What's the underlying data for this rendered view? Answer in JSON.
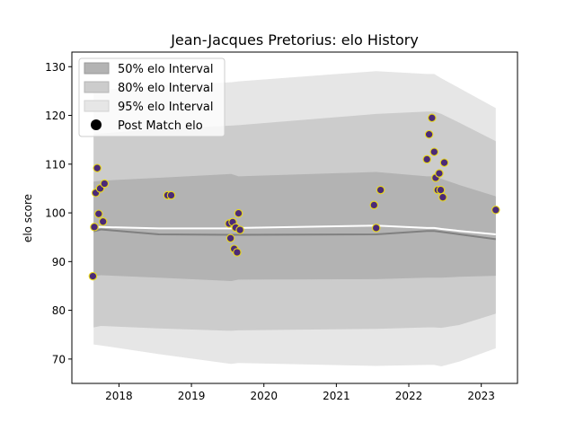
{
  "chart_data": {
    "type": "area",
    "title": "Jean-Jacques Pretorius: elo History",
    "xlabel": "",
    "ylabel": "elo score",
    "xlim": [
      2017.35,
      2023.5
    ],
    "ylim": [
      65,
      133
    ],
    "x_ticks": [
      2018,
      2019,
      2020,
      2021,
      2022,
      2023
    ],
    "y_ticks": [
      70,
      80,
      90,
      100,
      110,
      120,
      130
    ],
    "grid": false,
    "legend_position": "top-left",
    "legend": {
      "i50": "50% elo Interval",
      "i80": "80% elo Interval",
      "i95": "95% elo Interval",
      "post": "Post Match elo"
    },
    "colors": {
      "band50": "#b3b3b3",
      "band80": "#cccccc",
      "band95": "#e6e6e6",
      "mean_line": "#ffffff",
      "median_line": "#808080",
      "point_fill": "#4b2a77",
      "point_edge": "#e8d81c"
    },
    "bands": {
      "x": [
        2017.65,
        2017.75,
        2018.55,
        2019.55,
        2019.65,
        2021.55,
        2022.25,
        2022.35,
        2022.45,
        2022.7,
        2023.2
      ],
      "p95_low": [
        73.0,
        72.8,
        71.0,
        69.0,
        69.2,
        68.6,
        68.8,
        68.8,
        68.5,
        69.5,
        72.2
      ],
      "p80_low": [
        76.5,
        76.8,
        76.3,
        75.8,
        75.9,
        76.2,
        76.5,
        76.5,
        76.4,
        77.0,
        79.3
      ],
      "p50_low": [
        87.0,
        87.2,
        86.7,
        86.0,
        86.3,
        86.4,
        86.7,
        86.7,
        86.7,
        86.9,
        87.1
      ],
      "p50_high": [
        106.4,
        106.6,
        107.2,
        108.0,
        107.5,
        108.4,
        107.5,
        107.5,
        107.0,
        105.7,
        103.4
      ],
      "p80_high": [
        116.1,
        116.3,
        117.2,
        117.9,
        118.0,
        120.3,
        120.8,
        120.8,
        120.3,
        118.5,
        114.7
      ],
      "p95_high": [
        125.0,
        125.2,
        126.2,
        126.8,
        127.0,
        129.1,
        128.5,
        128.5,
        127.6,
        125.6,
        121.5
      ]
    },
    "mean_line": {
      "x": [
        2017.65,
        2017.75,
        2018.55,
        2019.55,
        2019.65,
        2021.55,
        2022.25,
        2022.35,
        2022.45,
        2022.7,
        2023.2
      ],
      "y": [
        97.1,
        97.1,
        96.8,
        96.8,
        96.9,
        97.4,
        96.9,
        96.9,
        96.7,
        96.3,
        95.6
      ]
    },
    "median_line": {
      "x": [
        2017.65,
        2017.75,
        2018.55,
        2019.55,
        2019.65,
        2021.55,
        2022.25,
        2022.35,
        2022.45,
        2022.7,
        2023.2
      ],
      "y": [
        96.2,
        96.6,
        95.6,
        95.5,
        95.5,
        95.6,
        96.3,
        96.3,
        96.1,
        95.6,
        94.6
      ]
    },
    "points": [
      {
        "x": 2017.64,
        "y": 87.0
      },
      {
        "x": 2017.66,
        "y": 97.1
      },
      {
        "x": 2017.68,
        "y": 104.1
      },
      {
        "x": 2017.7,
        "y": 109.2
      },
      {
        "x": 2017.72,
        "y": 99.8
      },
      {
        "x": 2017.74,
        "y": 105.0
      },
      {
        "x": 2017.78,
        "y": 98.2
      },
      {
        "x": 2017.8,
        "y": 106.0
      },
      {
        "x": 2018.67,
        "y": 103.6
      },
      {
        "x": 2018.72,
        "y": 103.6
      },
      {
        "x": 2019.52,
        "y": 97.8
      },
      {
        "x": 2019.54,
        "y": 94.8
      },
      {
        "x": 2019.57,
        "y": 98.1
      },
      {
        "x": 2019.59,
        "y": 92.6
      },
      {
        "x": 2019.61,
        "y": 97.0
      },
      {
        "x": 2019.63,
        "y": 91.9
      },
      {
        "x": 2019.65,
        "y": 99.9
      },
      {
        "x": 2019.67,
        "y": 96.5
      },
      {
        "x": 2021.52,
        "y": 101.6
      },
      {
        "x": 2021.55,
        "y": 96.9
      },
      {
        "x": 2021.61,
        "y": 104.7
      },
      {
        "x": 2022.25,
        "y": 111.0
      },
      {
        "x": 2022.28,
        "y": 116.1
      },
      {
        "x": 2022.32,
        "y": 119.5
      },
      {
        "x": 2022.35,
        "y": 112.5
      },
      {
        "x": 2022.37,
        "y": 107.2
      },
      {
        "x": 2022.4,
        "y": 104.7
      },
      {
        "x": 2022.42,
        "y": 108.1
      },
      {
        "x": 2022.44,
        "y": 104.7
      },
      {
        "x": 2022.47,
        "y": 103.2
      },
      {
        "x": 2022.49,
        "y": 110.3
      },
      {
        "x": 2023.2,
        "y": 100.6
      }
    ]
  }
}
